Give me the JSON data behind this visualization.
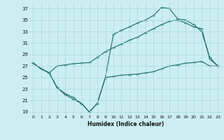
{
  "xlabel": "Humidex (Indice chaleur)",
  "background_color": "#cceef2",
  "grid_color": "#aad8dc",
  "line_color": "#1a6b6b",
  "xlim": [
    -0.5,
    23.5
  ],
  "ylim": [
    18.5,
    38
  ],
  "yticks": [
    19,
    21,
    23,
    25,
    27,
    29,
    31,
    33,
    35,
    37
  ],
  "xticks": [
    0,
    1,
    2,
    3,
    4,
    5,
    6,
    7,
    8,
    9,
    10,
    11,
    12,
    13,
    14,
    15,
    16,
    17,
    18,
    19,
    20,
    21,
    22,
    23
  ],
  "series": [
    {
      "x": [
        0,
        1,
        2,
        3,
        4,
        5,
        6,
        7,
        8,
        9,
        10,
        11,
        12,
        13,
        14,
        15,
        16,
        17,
        18,
        19,
        20,
        21,
        22,
        23
      ],
      "y": [
        27.5,
        26.5,
        25.8,
        23.2,
        22.0,
        21.2,
        20.5,
        19.0,
        20.5,
        25.0,
        32.5,
        33.2,
        33.8,
        34.5,
        35.0,
        35.8,
        37.2,
        37.0,
        35.2,
        35.0,
        34.2,
        33.0,
        28.5,
        27.0
      ]
    },
    {
      "x": [
        0,
        1,
        2,
        3,
        4,
        5,
        6,
        7,
        8,
        9,
        10,
        11,
        12,
        13,
        14,
        15,
        16,
        17,
        18,
        19,
        20,
        21,
        22,
        23
      ],
      "y": [
        27.5,
        26.5,
        25.8,
        27.0,
        27.2,
        27.4,
        27.5,
        27.6,
        28.5,
        29.5,
        30.2,
        30.8,
        31.5,
        32.0,
        32.8,
        33.5,
        34.2,
        34.8,
        35.0,
        34.5,
        33.8,
        33.5,
        28.2,
        27.0
      ]
    },
    {
      "x": [
        0,
        1,
        2,
        3,
        4,
        5,
        6,
        7,
        8,
        9,
        10,
        11,
        12,
        13,
        14,
        15,
        16,
        17,
        18,
        19,
        20,
        21,
        22,
        23
      ],
      "y": [
        27.5,
        26.5,
        25.8,
        23.2,
        22.2,
        21.5,
        20.5,
        19.0,
        20.5,
        25.0,
        25.2,
        25.4,
        25.5,
        25.6,
        25.8,
        26.0,
        26.5,
        27.0,
        27.2,
        27.5,
        27.6,
        27.8,
        27.0,
        27.0
      ]
    }
  ]
}
